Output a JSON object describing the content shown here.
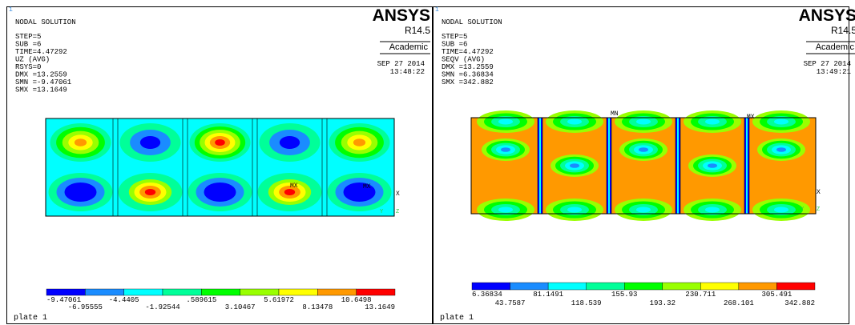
{
  "panels": [
    {
      "corner": "1",
      "header": "NODAL SOLUTION",
      "info": [
        "STEP=5",
        "SUB =6",
        "TIME=4.47292",
        "UZ       (AVG)",
        "RSYS=0",
        "DMX =13.2559",
        "SMN =-9.47061",
        "SMX =13.1649"
      ],
      "brand": "ANSYS",
      "version": "R14.5",
      "edition": "Academic",
      "date": "SEP 27 2014",
      "time": "13:48:22",
      "legend_top": [
        "-9.47061",
        "-4.4405",
        ".589615",
        "5.61972",
        "10.6498"
      ],
      "legend_bottom": [
        "-6.95555",
        "-1.92544",
        "3.10467",
        "8.13478",
        "13.1649"
      ],
      "markers": [
        "MX",
        "MX",
        "X",
        "Y",
        "Z"
      ],
      "footer": "plate 1"
    },
    {
      "corner": "1",
      "header": "NODAL SOLUTION",
      "info": [
        "STEP=5",
        "SUB =6",
        "TIME=4.47292",
        "SEQV     (AVG)",
        "DMX =13.2559",
        "SMN =6.36834",
        "SMX =342.882"
      ],
      "brand": "ANSYS",
      "version": "R14.5",
      "edition": "Academic",
      "date": "SEP 27 2014",
      "time": "13:49:21",
      "legend_top": [
        "6.36834",
        "81.1491",
        "155.93",
        "230.711",
        "305.491"
      ],
      "legend_bottom": [
        "43.7587",
        "118.539",
        "193.32",
        "268.101",
        "342.882"
      ],
      "markers": [
        "MN",
        "MX",
        "X",
        "Y",
        "Z"
      ],
      "footer": "plate 1"
    }
  ]
}
